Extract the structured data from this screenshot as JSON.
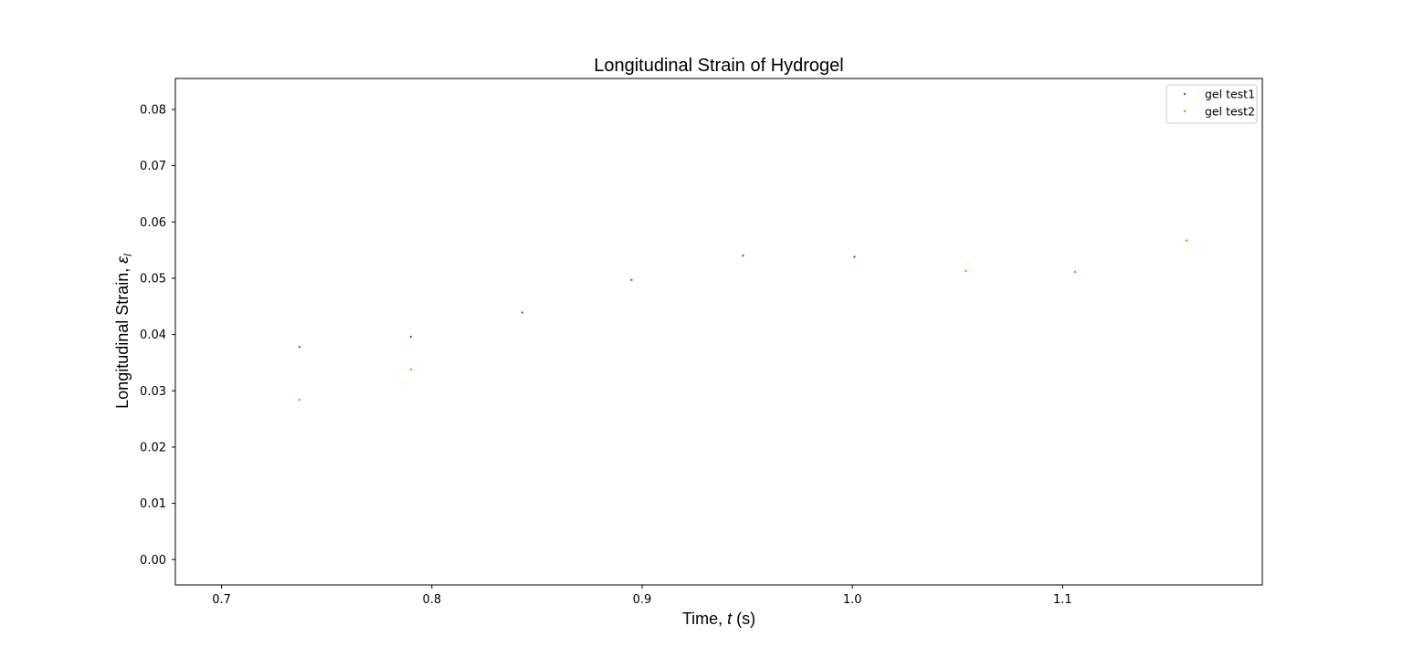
{
  "chart_data": {
    "type": "scatter",
    "title": "Longitudinal Strain of Hydrogel",
    "xlabel": {
      "prefix": "Time, ",
      "var": "t",
      "suffix": " (s)"
    },
    "ylabel": {
      "prefix": "Longitudinal Strain, ",
      "var": "ε",
      "sub": "l"
    },
    "xlim": [
      0.678,
      1.195
    ],
    "ylim": [
      -0.0045,
      0.0855
    ],
    "xticks": [
      0.7,
      0.8,
      0.9,
      1.0,
      1.1
    ],
    "xtick_labels": [
      "0.7",
      "0.8",
      "0.9",
      "1.0",
      "1.1"
    ],
    "yticks": [
      0.0,
      0.01,
      0.02,
      0.03,
      0.04,
      0.05,
      0.06,
      0.07,
      0.08
    ],
    "ytick_labels": [
      "0.00",
      "0.01",
      "0.02",
      "0.03",
      "0.04",
      "0.05",
      "0.06",
      "0.07",
      "0.08"
    ],
    "grid": false,
    "legend_position": "top-right",
    "series": [
      {
        "name": "gel test1",
        "color": "#1f77b4",
        "x": [
          0.737,
          0.79,
          0.843,
          0.895,
          0.948,
          1.001
        ],
        "y": [
          0.0378,
          0.0396,
          0.0439,
          0.0497,
          0.054,
          0.0538
        ]
      },
      {
        "name": "gel test2",
        "color": "#ff7f0e",
        "x": [
          0.737,
          0.79,
          1.054,
          1.106,
          1.159
        ],
        "y": [
          0.0284,
          0.0338,
          0.0513,
          0.0511,
          0.0567
        ]
      }
    ]
  }
}
